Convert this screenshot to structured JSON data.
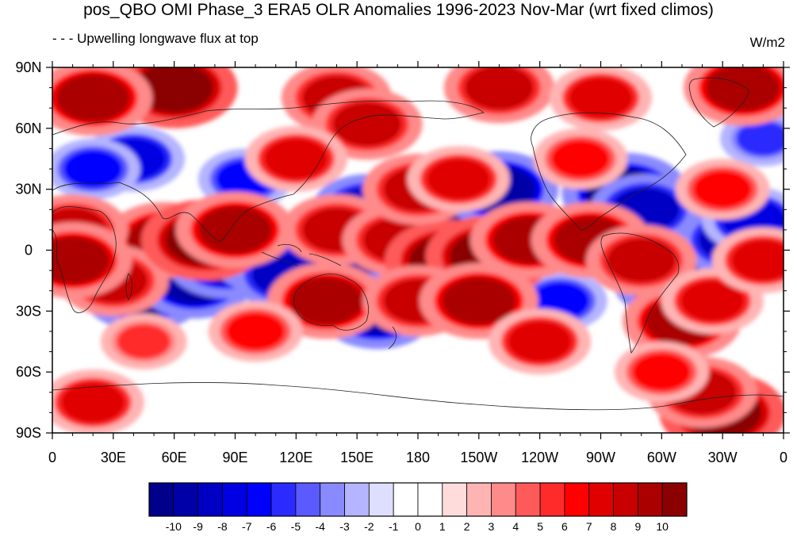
{
  "title": "pos_QBO OMI Phase_3 ERA5 OLR Anomalies 1996-2023 Nov-Mar (wrt fixed climos)",
  "subtitle": "- - - Upwelling longwave flux at top",
  "units": "W/m2",
  "map": {
    "lon_range": [
      0,
      360
    ],
    "lat_range": [
      -90,
      90
    ],
    "lat_ticks": [
      {
        "value": 90,
        "label": "90N"
      },
      {
        "value": 60,
        "label": "60N"
      },
      {
        "value": 30,
        "label": "30N"
      },
      {
        "value": 0,
        "label": "0"
      },
      {
        "value": -30,
        "label": "30S"
      },
      {
        "value": -60,
        "label": "60S"
      },
      {
        "value": -90,
        "label": "90S"
      }
    ],
    "lon_ticks": [
      {
        "value": 0,
        "label": "0"
      },
      {
        "value": 30,
        "label": "30E"
      },
      {
        "value": 60,
        "label": "60E"
      },
      {
        "value": 90,
        "label": "90E"
      },
      {
        "value": 120,
        "label": "120E"
      },
      {
        "value": 150,
        "label": "150E"
      },
      {
        "value": 180,
        "label": "180"
      },
      {
        "value": 210,
        "label": "150W"
      },
      {
        "value": 240,
        "label": "120W"
      },
      {
        "value": 270,
        "label": "90W"
      },
      {
        "value": 300,
        "label": "60W"
      },
      {
        "value": 330,
        "label": "30W"
      },
      {
        "value": 360,
        "label": "0"
      }
    ],
    "anomalies": [
      {
        "lon": 45,
        "lat": -20,
        "v": -10
      },
      {
        "lon": 70,
        "lat": -15,
        "v": -9
      },
      {
        "lon": 85,
        "lat": -5,
        "v": -9
      },
      {
        "lon": 108,
        "lat": -2,
        "v": -10
      },
      {
        "lon": 125,
        "lat": -5,
        "v": -10
      },
      {
        "lon": 150,
        "lat": -8,
        "v": -9
      },
      {
        "lon": 160,
        "lat": -30,
        "v": -9
      },
      {
        "lon": 155,
        "lat": 20,
        "v": -8
      },
      {
        "lon": 183,
        "lat": 20,
        "v": -10
      },
      {
        "lon": 197,
        "lat": 22,
        "v": -10
      },
      {
        "lon": 220,
        "lat": 30,
        "v": -9
      },
      {
        "lon": 235,
        "lat": -25,
        "v": -8
      },
      {
        "lon": 250,
        "lat": -25,
        "v": -6
      },
      {
        "lon": 282,
        "lat": 28,
        "v": -10
      },
      {
        "lon": 292,
        "lat": 20,
        "v": -8
      },
      {
        "lon": 305,
        "lat": -15,
        "v": -9
      },
      {
        "lon": 335,
        "lat": 5,
        "v": -8
      },
      {
        "lon": 345,
        "lat": 15,
        "v": -7
      },
      {
        "lon": 40,
        "lat": 45,
        "v": -7
      },
      {
        "lon": 95,
        "lat": 35,
        "v": -6
      },
      {
        "lon": 20,
        "lat": 40,
        "v": -6
      },
      {
        "lon": 115,
        "lat": -12,
        "v": -8
      },
      {
        "lon": 350,
        "lat": 55,
        "v": -5
      },
      {
        "lon": 55,
        "lat": 5,
        "v": 9
      },
      {
        "lon": 30,
        "lat": -15,
        "v": 8
      },
      {
        "lon": 75,
        "lat": 5,
        "v": 10
      },
      {
        "lon": 90,
        "lat": 10,
        "v": 9
      },
      {
        "lon": 135,
        "lat": -25,
        "v": 9
      },
      {
        "lon": 140,
        "lat": 10,
        "v": 8
      },
      {
        "lon": 170,
        "lat": 5,
        "v": 8
      },
      {
        "lon": 195,
        "lat": -5,
        "v": 10
      },
      {
        "lon": 215,
        "lat": -3,
        "v": 10
      },
      {
        "lon": 235,
        "lat": 5,
        "v": 9
      },
      {
        "lon": 180,
        "lat": -25,
        "v": 8
      },
      {
        "lon": 210,
        "lat": -25,
        "v": 9
      },
      {
        "lon": 180,
        "lat": 30,
        "v": 8
      },
      {
        "lon": 200,
        "lat": 35,
        "v": 7
      },
      {
        "lon": 265,
        "lat": 5,
        "v": 9
      },
      {
        "lon": 290,
        "lat": -5,
        "v": 8
      },
      {
        "lon": 310,
        "lat": -35,
        "v": 9
      },
      {
        "lon": 325,
        "lat": -25,
        "v": 7
      },
      {
        "lon": 10,
        "lat": 10,
        "v": 8
      },
      {
        "lon": 10,
        "lat": -5,
        "v": 9
      },
      {
        "lon": 350,
        "lat": -5,
        "v": 7
      },
      {
        "lon": 330,
        "lat": 30,
        "v": 6
      },
      {
        "lon": 60,
        "lat": 80,
        "v": 10
      },
      {
        "lon": 20,
        "lat": 75,
        "v": 9
      },
      {
        "lon": 140,
        "lat": 75,
        "v": 8
      },
      {
        "lon": 220,
        "lat": 80,
        "v": 8
      },
      {
        "lon": 340,
        "lat": 80,
        "v": 9
      },
      {
        "lon": 270,
        "lat": 75,
        "v": 7
      },
      {
        "lon": 155,
        "lat": 62,
        "v": 8
      },
      {
        "lon": 330,
        "lat": -80,
        "v": 10
      },
      {
        "lon": 320,
        "lat": -70,
        "v": 8
      },
      {
        "lon": 20,
        "lat": -75,
        "v": 7
      },
      {
        "lon": 240,
        "lat": -45,
        "v": 7
      },
      {
        "lon": 100,
        "lat": -40,
        "v": 6
      },
      {
        "lon": 45,
        "lat": -45,
        "v": 5
      },
      {
        "lon": 300,
        "lat": -60,
        "v": 6
      },
      {
        "lon": 120,
        "lat": 45,
        "v": 7
      },
      {
        "lon": 260,
        "lat": 45,
        "v": 6
      }
    ]
  },
  "colorbar": {
    "colors": [
      "#00008b",
      "#0000a8",
      "#0000c5",
      "#0000e2",
      "#0000ff",
      "#2b2bff",
      "#5a5aff",
      "#8a8aff",
      "#b4b4ff",
      "#dedeff",
      "#ffffff",
      "#ffffff",
      "#ffdcdc",
      "#ffb4b4",
      "#ff8a8a",
      "#ff5a5a",
      "#ff2b2b",
      "#ff0000",
      "#e10000",
      "#c80000",
      "#aa0000",
      "#8b0000"
    ],
    "levels": [
      "-10",
      "-9",
      "-8",
      "-7",
      "-6",
      "-5",
      "-4",
      "-3",
      "-2",
      "-1",
      "0",
      "1",
      "2",
      "3",
      "4",
      "5",
      "6",
      "7",
      "8",
      "9",
      "10"
    ]
  }
}
